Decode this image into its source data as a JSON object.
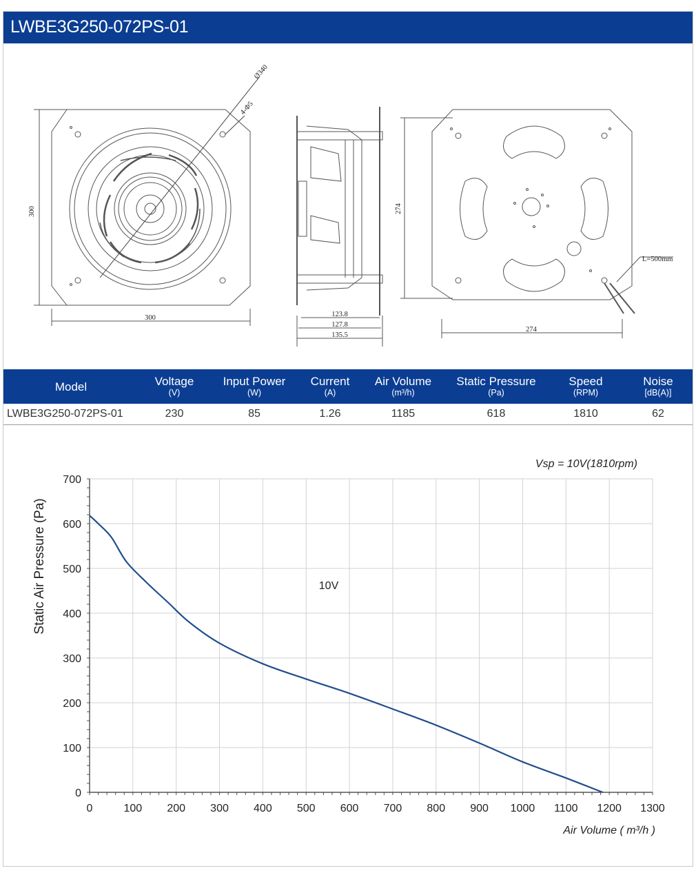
{
  "header": {
    "title": "LWBE3G250-072PS-01"
  },
  "drawing": {
    "dims": {
      "dia": "Ø340",
      "holes": "4-Φ5",
      "front_h": "300",
      "front_w": "300",
      "side_1": "123.8",
      "side_2": "127.8",
      "side_3": "135.5",
      "back_h": "274",
      "back_w": "274",
      "lead": "L=500mm"
    }
  },
  "spec_table": {
    "columns": [
      {
        "label": "Model",
        "unit": ""
      },
      {
        "label": "Voltage",
        "unit": "(V)"
      },
      {
        "label": "Input Power",
        "unit": "(W)"
      },
      {
        "label": "Current",
        "unit": "(A)"
      },
      {
        "label": "Air Volume",
        "unit": "(m³/h)"
      },
      {
        "label": "Static Pressure",
        "unit": "(Pa)"
      },
      {
        "label": "Speed",
        "unit": "(RPM)"
      },
      {
        "label": "Noise",
        "unit": "[dB(A)]"
      }
    ],
    "row": [
      "LWBE3G250-072PS-01",
      "230",
      "85",
      "1.26",
      "1185",
      "618",
      "1810",
      "62"
    ]
  },
  "chart_data": {
    "type": "line",
    "title": "",
    "annotation": "Vsp = 10V(1810rpm)",
    "xlabel": "Air Volume ( m³/h )",
    "ylabel": "Static Air Pressure  (Pa)",
    "xlim": [
      0,
      1300
    ],
    "ylim": [
      0,
      700
    ],
    "xticks": [
      0,
      100,
      200,
      300,
      400,
      500,
      600,
      700,
      800,
      900,
      1000,
      1100,
      1200,
      1300
    ],
    "yticks": [
      0,
      100,
      200,
      300,
      400,
      500,
      600,
      700
    ],
    "grid": true,
    "series": [
      {
        "name": "10V",
        "color": "#1f4e8c",
        "x": [
          0,
          20,
          50,
          85,
          130,
          180,
          230,
          300,
          400,
          500,
          600,
          700,
          800,
          900,
          1000,
          1100,
          1185
        ],
        "y": [
          618,
          600,
          570,
          515,
          470,
          425,
          380,
          333,
          287,
          253,
          221,
          186,
          150,
          110,
          68,
          32,
          0
        ]
      }
    ]
  }
}
